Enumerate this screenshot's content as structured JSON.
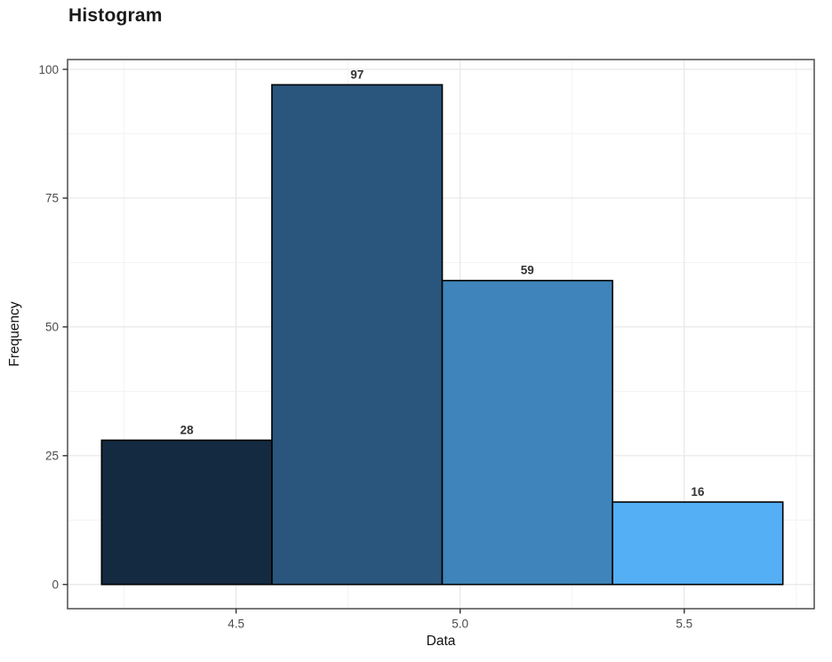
{
  "chart_data": {
    "type": "bar",
    "subtype": "histogram",
    "title": "Histogram",
    "xlabel": "Data",
    "ylabel": "Frequency",
    "bins": [
      {
        "x0": 4.2,
        "x1": 4.58,
        "count": 28,
        "label": "28",
        "color": "#142A40"
      },
      {
        "x0": 4.58,
        "x1": 4.96,
        "count": 97,
        "label": "97",
        "color": "#2A567D"
      },
      {
        "x0": 4.96,
        "x1": 5.34,
        "count": 59,
        "label": "59",
        "color": "#3F84BA"
      },
      {
        "x0": 5.34,
        "x1": 5.72,
        "count": 16,
        "label": "16",
        "color": "#55AFF5"
      }
    ],
    "x_ticks": [
      {
        "value": 4.5,
        "label": "4.5"
      },
      {
        "value": 5.0,
        "label": "5.0"
      },
      {
        "value": 5.5,
        "label": "5.5"
      }
    ],
    "x_minor_ticks": [
      4.25,
      4.75,
      5.25,
      5.75
    ],
    "y_ticks": [
      {
        "value": 0,
        "label": "0"
      },
      {
        "value": 25,
        "label": "25"
      },
      {
        "value": 50,
        "label": "50"
      },
      {
        "value": 75,
        "label": "75"
      },
      {
        "value": 100,
        "label": "100"
      }
    ],
    "y_minor_ticks": [
      12.5,
      37.5,
      62.5,
      87.5
    ],
    "xlim": [
      4.124,
      5.79
    ],
    "ylim": [
      -4.7,
      101.9
    ],
    "grid": true,
    "legend": "none",
    "colors": {
      "background": "#ffffff",
      "panel_background": "#ffffff",
      "panel_border": "#4d4d4d",
      "grid_major": "#e7e7e7",
      "grid_minor": "#f3f3f3",
      "bar_stroke": "#000000",
      "tick_mark": "#333333",
      "tick_label": "#4d4d4d",
      "axis_title": "#111111",
      "bar_label": "#333333",
      "title": "#1a1a1a"
    }
  }
}
